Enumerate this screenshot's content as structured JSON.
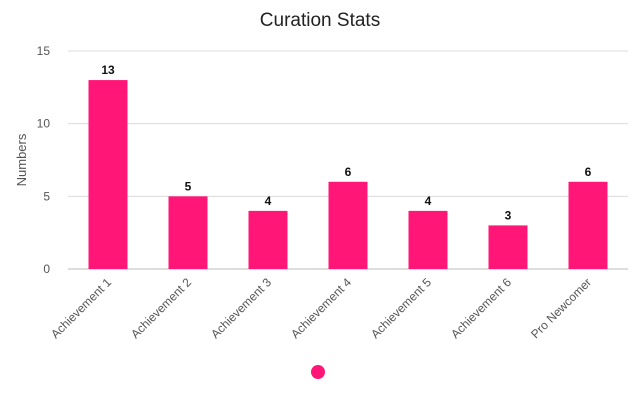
{
  "chart_data": {
    "type": "bar",
    "title": "Curation Stats",
    "xlabel": "",
    "ylabel": "Numbers",
    "categories": [
      "Achievement 1",
      "Achievement 2",
      "Achievement 3",
      "Achievement 4",
      "Achievement 5",
      "Achievement 6",
      "Pro Newcomer"
    ],
    "series": [
      {
        "values": [
          13,
          5,
          4,
          6,
          4,
          3,
          6
        ],
        "color": "#ff1677"
      }
    ],
    "ylim": [
      0,
      15
    ],
    "yticks": [
      0,
      5,
      10,
      15
    ],
    "grid": true,
    "legend": {
      "position": "bottom",
      "marker": "dot"
    }
  }
}
